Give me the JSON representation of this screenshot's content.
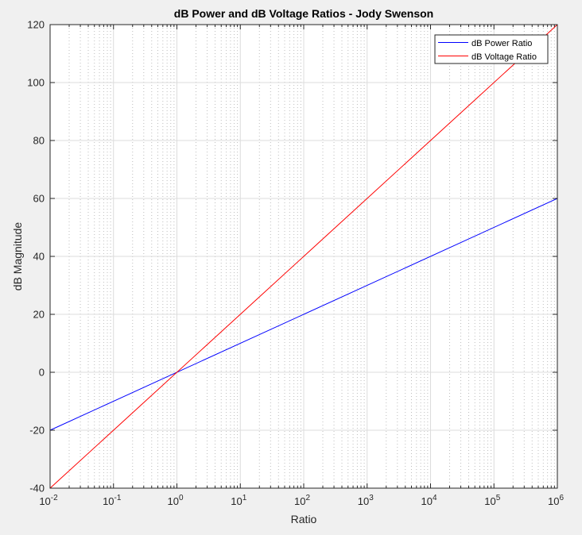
{
  "chart_data": {
    "type": "line",
    "title": "dB Power and dB Voltage Ratios - Jody Swenson",
    "xlabel": "Ratio",
    "ylabel": "dB Magnitude",
    "xscale": "log",
    "xlim": [
      0.01,
      1000000
    ],
    "ylim": [
      -40,
      120
    ],
    "xticks": [
      {
        "base": "10",
        "exp": "-2"
      },
      {
        "base": "10",
        "exp": "-1"
      },
      {
        "base": "10",
        "exp": "0"
      },
      {
        "base": "10",
        "exp": "1"
      },
      {
        "base": "10",
        "exp": "2"
      },
      {
        "base": "10",
        "exp": "3"
      },
      {
        "base": "10",
        "exp": "4"
      },
      {
        "base": "10",
        "exp": "5"
      },
      {
        "base": "10",
        "exp": "6"
      }
    ],
    "yticks": [
      "-40",
      "-20",
      "0",
      "20",
      "40",
      "60",
      "80",
      "100",
      "120"
    ],
    "grid": true,
    "minor_grid": true,
    "legend_position": "top-right",
    "series": [
      {
        "name": "dB Power Ratio",
        "color": "#0000ff",
        "x": [
          0.01,
          1000000
        ],
        "y": [
          -20,
          60
        ]
      },
      {
        "name": "dB Voltage Ratio",
        "color": "#ff0000",
        "x": [
          0.01,
          1000000
        ],
        "y": [
          -40,
          120
        ]
      }
    ]
  }
}
